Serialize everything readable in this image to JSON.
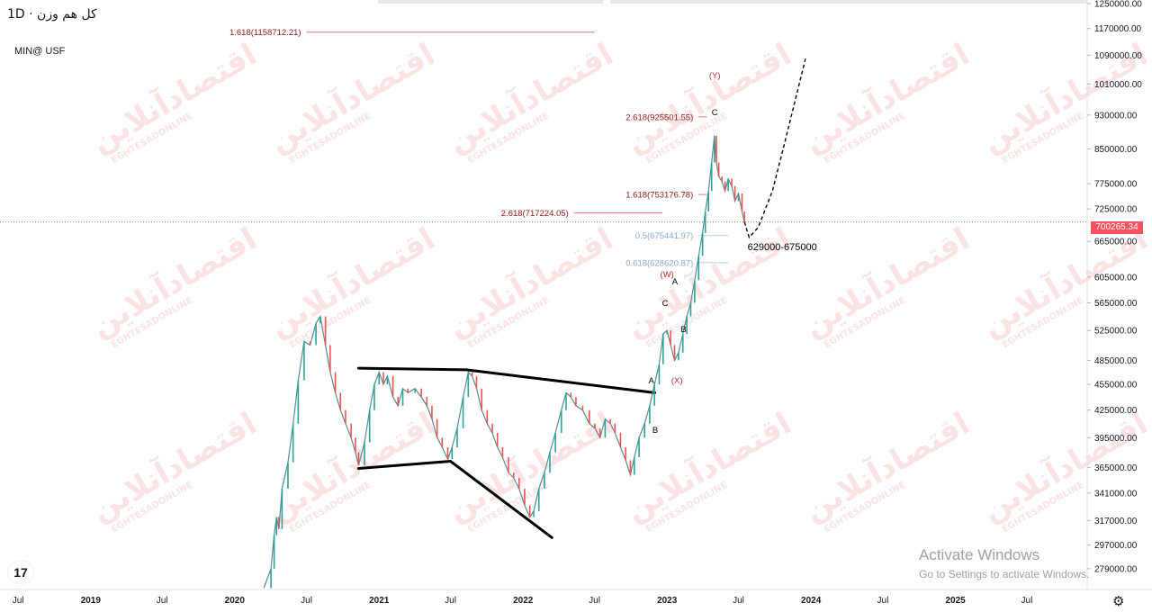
{
  "header": {
    "title": "کل هم وزن · 1D",
    "symbol": "MIN@ USF"
  },
  "last_price": "700265.34",
  "watermark_text": "اقتصادآنلاین",
  "watermark_sub": "EGHTESADONLINE",
  "activation": {
    "line1": "Activate Windows",
    "line2": "Go to Settings to activate Windows."
  },
  "logo_text": "17",
  "settings_icon": "gear-icon",
  "colors": {
    "price_line": "#787b86",
    "fib_red": "#8b1a1a",
    "fib_blue": "#8aa8c8",
    "last_price": "#f7525f",
    "wave": "#c62828"
  },
  "chart_data": {
    "type": "line",
    "y_scale": "log",
    "ylim": [
      264000,
      1250000
    ],
    "xlim": [
      "2018-05-16",
      "2025-12-01"
    ],
    "y_ticks": [
      "1250000.00",
      "1170000.00",
      "1090000.00",
      "1010000.00",
      "930000.00",
      "850000.00",
      "775000.00",
      "725000.00",
      "665000.00",
      "605000.00",
      "565000.00",
      "525000.00",
      "485000.00",
      "455000.00",
      "425000.00",
      "395000.00",
      "365000.00",
      "341000.00",
      "317000.00",
      "297000.00",
      "279000.00"
    ],
    "x_ticks": [
      {
        "label": "Jul",
        "date": "2018-07-01"
      },
      {
        "label": "2019",
        "date": "2019-01-01"
      },
      {
        "label": "Jul",
        "date": "2019-07-01"
      },
      {
        "label": "2020",
        "date": "2020-01-01"
      },
      {
        "label": "Jul",
        "date": "2020-07-01"
      },
      {
        "label": "2021",
        "date": "2021-01-01"
      },
      {
        "label": "Jul",
        "date": "2021-07-01"
      },
      {
        "label": "2022",
        "date": "2022-01-01"
      },
      {
        "label": "Jul",
        "date": "2022-07-01"
      },
      {
        "label": "2023",
        "date": "2023-01-01"
      },
      {
        "label": "Jul",
        "date": "2023-07-01"
      },
      {
        "label": "2024",
        "date": "2024-01-01"
      },
      {
        "label": "Jul",
        "date": "2024-07-01"
      },
      {
        "label": "2025",
        "date": "2025-01-01"
      },
      {
        "label": "Jul",
        "date": "2025-07-01"
      }
    ],
    "series": [
      {
        "points": [
          [
            "2020-03-15",
            265000
          ],
          [
            "2020-04-02",
            279000
          ],
          [
            "2020-04-10",
            305000
          ],
          [
            "2020-04-16",
            320000
          ],
          [
            "2020-04-22",
            310000
          ],
          [
            "2020-04-30",
            345000
          ],
          [
            "2020-05-15",
            370000
          ],
          [
            "2020-05-28",
            410000
          ],
          [
            "2020-06-10",
            460000
          ],
          [
            "2020-06-25",
            510000
          ],
          [
            "2020-07-10",
            505000
          ],
          [
            "2020-07-25",
            535000
          ],
          [
            "2020-08-05",
            545000
          ],
          [
            "2020-08-18",
            505000
          ],
          [
            "2020-08-30",
            470000
          ],
          [
            "2020-09-12",
            445000
          ],
          [
            "2020-09-25",
            425000
          ],
          [
            "2020-10-08",
            410000
          ],
          [
            "2020-10-22",
            395000
          ],
          [
            "2020-11-02",
            380000
          ],
          [
            "2020-11-10",
            367000
          ],
          [
            "2020-11-25",
            390000
          ],
          [
            "2020-12-08",
            425000
          ],
          [
            "2020-12-20",
            455000
          ],
          [
            "2021-01-01",
            470000
          ],
          [
            "2021-01-12",
            455000
          ],
          [
            "2021-01-22",
            465000
          ],
          [
            "2021-02-05",
            440000
          ],
          [
            "2021-02-18",
            430000
          ],
          [
            "2021-03-02",
            450000
          ],
          [
            "2021-03-15",
            445000
          ],
          [
            "2021-04-02",
            450000
          ],
          [
            "2021-04-18",
            440000
          ],
          [
            "2021-05-02",
            430000
          ],
          [
            "2021-05-15",
            415000
          ],
          [
            "2021-05-28",
            395000
          ],
          [
            "2021-06-10",
            385000
          ],
          [
            "2021-06-24",
            373000
          ],
          [
            "2021-07-05",
            385000
          ],
          [
            "2021-07-18",
            405000
          ],
          [
            "2021-08-02",
            440000
          ],
          [
            "2021-08-15",
            470000
          ],
          [
            "2021-08-25",
            465000
          ],
          [
            "2021-09-05",
            450000
          ],
          [
            "2021-09-18",
            425000
          ],
          [
            "2021-10-02",
            410000
          ],
          [
            "2021-10-15",
            400000
          ],
          [
            "2021-10-28",
            385000
          ],
          [
            "2021-11-10",
            375000
          ],
          [
            "2021-11-25",
            360000
          ],
          [
            "2021-12-08",
            355000
          ],
          [
            "2021-12-22",
            345000
          ],
          [
            "2022-01-05",
            330000
          ],
          [
            "2022-01-18",
            320000
          ],
          [
            "2022-01-28",
            325000
          ],
          [
            "2022-02-10",
            345000
          ],
          [
            "2022-02-24",
            360000
          ],
          [
            "2022-03-10",
            380000
          ],
          [
            "2022-03-24",
            400000
          ],
          [
            "2022-04-08",
            425000
          ],
          [
            "2022-04-20",
            445000
          ],
          [
            "2022-05-02",
            440000
          ],
          [
            "2022-05-15",
            430000
          ],
          [
            "2022-06-01",
            425000
          ],
          [
            "2022-06-18",
            410000
          ],
          [
            "2022-07-02",
            405000
          ],
          [
            "2022-07-15",
            395000
          ],
          [
            "2022-07-28",
            415000
          ],
          [
            "2022-08-10",
            410000
          ],
          [
            "2022-08-22",
            400000
          ],
          [
            "2022-09-05",
            385000
          ],
          [
            "2022-09-18",
            372000
          ],
          [
            "2022-09-30",
            358000
          ],
          [
            "2022-10-10",
            375000
          ],
          [
            "2022-10-22",
            395000
          ],
          [
            "2022-11-05",
            410000
          ],
          [
            "2022-11-18",
            430000
          ],
          [
            "2022-11-30",
            455000
          ],
          [
            "2022-12-12",
            480000
          ],
          [
            "2022-12-22",
            520000
          ],
          [
            "2023-01-01",
            525000
          ],
          [
            "2023-01-10",
            505000
          ],
          [
            "2023-01-20",
            485000
          ],
          [
            "2023-01-30",
            495000
          ],
          [
            "2023-02-10",
            520000
          ],
          [
            "2023-02-20",
            545000
          ],
          [
            "2023-03-02",
            565000
          ],
          [
            "2023-03-12",
            600000
          ],
          [
            "2023-03-22",
            640000
          ],
          [
            "2023-04-01",
            680000
          ],
          [
            "2023-04-08",
            720000
          ],
          [
            "2023-04-16",
            760000
          ],
          [
            "2023-04-24",
            820000
          ],
          [
            "2023-05-01",
            880000
          ],
          [
            "2023-05-06",
            820000
          ],
          [
            "2023-05-12",
            790000
          ],
          [
            "2023-05-20",
            780000
          ],
          [
            "2023-05-28",
            760000
          ],
          [
            "2023-06-05",
            785000
          ],
          [
            "2023-06-14",
            770000
          ],
          [
            "2023-06-22",
            740000
          ],
          [
            "2023-07-01",
            755000
          ],
          [
            "2023-07-10",
            720000
          ],
          [
            "2023-07-16",
            700000
          ]
        ]
      },
      {
        "name": "",
        "projection": true,
        "points": [
          [
            "2023-07-16",
            700000
          ],
          [
            "2023-07-28",
            672000
          ],
          [
            "2023-08-20",
            690000
          ],
          [
            "2023-09-25",
            760000
          ],
          [
            "2023-10-25",
            860000
          ],
          [
            "2023-11-20",
            960000
          ],
          [
            "2023-12-18",
            1080000
          ]
        ]
      }
    ],
    "fib_levels": [
      {
        "label": "1.618(1158712.21)",
        "value": 1158712.21,
        "color": "red",
        "x_start": "2020-07-01",
        "x_end": "2022-07-01"
      },
      {
        "label": "2.618(925501.55)",
        "value": 925501.55,
        "color": "red",
        "x_start": "2023-03-22",
        "x_end": "2023-04-12"
      },
      {
        "label": "1.618(753176.78)",
        "value": 753176.78,
        "color": "red",
        "x_start": "2023-03-22",
        "x_end": "2023-04-12"
      },
      {
        "label": "2.618(717224.05)",
        "value": 717224.05,
        "color": "red",
        "x_start": "2022-05-10",
        "x_end": "2022-12-20"
      },
      {
        "label": "0.5(675441.97)",
        "value": 675441.97,
        "color": "blue",
        "x_start": "2023-03-22",
        "x_end": "2023-06-05"
      },
      {
        "label": "0.618(628620.87)",
        "value": 628620.87,
        "color": "blue",
        "x_start": "2023-03-22",
        "x_end": "2023-06-05"
      }
    ],
    "trendlines": [
      {
        "from": [
          "2020-11-10",
          475000
        ],
        "to": [
          "2021-08-10",
          473000
        ]
      },
      {
        "from": [
          "2021-08-10",
          473000
        ],
        "to": [
          "2022-12-01",
          445000
        ]
      },
      {
        "from": [
          "2020-11-10",
          364000
        ],
        "to": [
          "2021-07-01",
          371000
        ]
      },
      {
        "from": [
          "2021-07-01",
          371000
        ],
        "to": [
          "2022-03-15",
          303000
        ]
      }
    ],
    "wave_labels": [
      {
        "text": "(Y)",
        "date": "2023-05-02",
        "value": 1025000,
        "color": "red"
      },
      {
        "text": "C",
        "date": "2023-05-02",
        "value": 930000,
        "color": "black"
      },
      {
        "text": "(W)",
        "date": "2023-01-01",
        "value": 605000,
        "color": "red"
      },
      {
        "text": "A",
        "date": "2023-01-21",
        "value": 593000,
        "color": "black"
      },
      {
        "text": "C",
        "date": "2022-12-27",
        "value": 560000,
        "color": "black"
      },
      {
        "text": "B",
        "date": "2023-02-12",
        "value": 523000,
        "color": "black"
      },
      {
        "text": "A",
        "date": "2022-11-22",
        "value": 456000,
        "color": "black"
      },
      {
        "text": "(X)",
        "date": "2023-01-26",
        "value": 456000,
        "color": "red"
      },
      {
        "text": "B",
        "date": "2022-12-02",
        "value": 400000,
        "color": "black"
      }
    ],
    "annotation": {
      "text": "629000-675000",
      "date": "2023-07-24",
      "value": 650000
    }
  }
}
